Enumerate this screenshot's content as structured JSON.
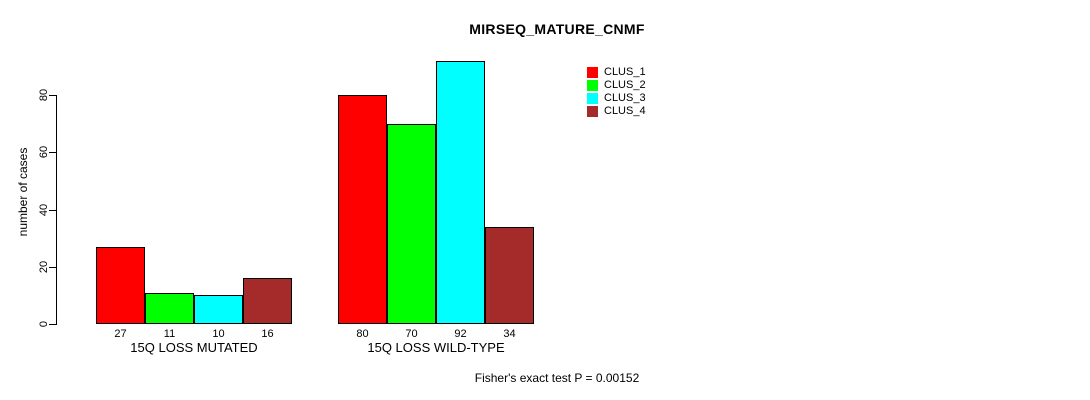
{
  "chart_data": {
    "type": "bar",
    "title": "MIRSEQ_MATURE_CNMF",
    "ylabel": "number of cases",
    "categories": [
      "15Q LOSS MUTATED",
      "15Q LOSS WILD-TYPE"
    ],
    "series": [
      {
        "name": "CLUS_1",
        "color": "#ff0000",
        "values": [
          27,
          80
        ]
      },
      {
        "name": "CLUS_2",
        "color": "#00ff00",
        "values": [
          11,
          70
        ]
      },
      {
        "name": "CLUS_3",
        "color": "#00ffff",
        "values": [
          10,
          92
        ]
      },
      {
        "name": "CLUS_4",
        "color": "#a52a2a",
        "values": [
          16,
          34
        ]
      }
    ],
    "yticks": [
      0,
      20,
      40,
      60,
      80
    ],
    "ylim": [
      0,
      92
    ],
    "grid": false,
    "legend_position": "top-right",
    "bar_value_labels": true,
    "annotation": "Fisher's exact test P = 0.00152"
  }
}
